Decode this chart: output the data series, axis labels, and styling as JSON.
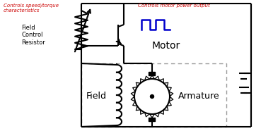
{
  "bg_color": "#ffffff",
  "line_color": "#000000",
  "red_color": "#cc0000",
  "blue_color": "#0000cc",
  "dashed_color": "#999999",
  "annotations": {
    "controls_speed": "Controls speed/torque\ncharacteristics",
    "field_control": "Field\nControl\nResistor",
    "controls_motor": "Controls motor power output",
    "motor_label": "Motor",
    "field_label": "Field",
    "armature_label": "Armature"
  },
  "figsize": [
    3.69,
    1.86
  ],
  "dpi": 100,
  "xlim": [
    0,
    369
  ],
  "ylim": [
    0,
    186
  ]
}
